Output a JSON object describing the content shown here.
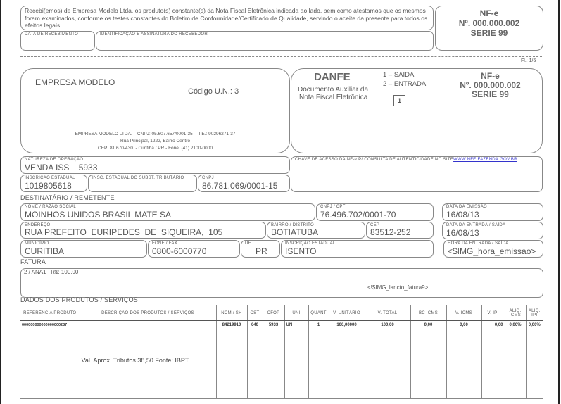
{
  "canhoto": {
    "text": "Recebi(emos) de Empresa Modelo Ltda. os produto(s) constante(s) da Nota Fiscal Eletrônica indicada ao lado, bem como atestamos que os mesmos foram examinados, conforme os testes constantes do Boletim de Conformidade/Certificado de Qualidade, servindo o aceite da presente para todos os efeitos legais.",
    "data_label": "DATA DE RECEBIMENTO",
    "ident_label": "IDENTIFICAÇÃO E ASSINATURA DO RECEBEDOR",
    "nfe": "NF-e",
    "numero": "Nº. 000.000.002",
    "serie": "SERIE 99"
  },
  "folha": "Fl.: 1/6",
  "emitente": {
    "nome": "EMPRESA MODELO",
    "codigo": "Código U.N.: 3",
    "linha1": "EMPRESA MODELO LTDA.    CNPJ: 05.607.657/0001-35     I.E.: 90296271-37",
    "linha2": "Rua Principal, 1222, Bairro Centro",
    "linha3": "CEP: 81.670-430  - Curitiba / PR - Fone  (41) 2100-0000"
  },
  "danfe": {
    "title": "DANFE",
    "sub1": "Documento Auxiliar da",
    "sub2": "Nota Fiscal Eletrônica",
    "saida": "1 – SAIDA",
    "entrada": "2 – ENTRADA",
    "tipo": "1",
    "nfe": "NF-e",
    "numero": "Nº. 000.000.002",
    "serie": "SERIE 99"
  },
  "chave": {
    "label": "CHAVE DE ACESSO DA NF-e P/ CONSULTA DE AUTENTICIDADE NO SITE",
    "link": "WWW.NFE.FAZENDA.GOV.BR"
  },
  "natureza": {
    "label": "NATUREZA DE OPERAÇÃO",
    "value": "VENDA ISS    5933"
  },
  "ie": {
    "label": "INSCRIÇÃO ESTADUAL",
    "value": "1019805618"
  },
  "ie_st": {
    "label": "INSC. ESTADUAL DO SUBST. TRIBUTÁRIO",
    "value": ""
  },
  "cnpj": {
    "label": "CNPJ",
    "value": "86.781.069/0001-15"
  },
  "dest": {
    "section": "DESTINATÁRIO / REMETENTE",
    "nome": {
      "label": "NOME / RAZÃO SOCIAL",
      "value": "MOINHOS UNIDOS BRASIL MATE SA"
    },
    "cnpj": {
      "label": "CNPJ / CPF",
      "value": "76.496.702/0001-70"
    },
    "emissao": {
      "label": "DATA DA EMISSÃO",
      "value": "16/08/13"
    },
    "endereco": {
      "label": "ENDEREÇO",
      "value": "RUA PREFEITO  EURIPEDES  DE  SIQUEIRA,  105"
    },
    "bairro": {
      "label": "BAIRRO / DISTRITO",
      "value": "BOTIATUBA"
    },
    "cep": {
      "label": "CEP",
      "value": "83512-252"
    },
    "entrada": {
      "label": "DATA DA ENTRADA / SAÍDA",
      "value": "16/08/13"
    },
    "municipio": {
      "label": "MUNICÍPIO",
      "value": "CURITIBA"
    },
    "fone": {
      "label": "FONE / FAX",
      "value": "0800-6000770"
    },
    "uf": {
      "label": "UF",
      "value": "PR"
    },
    "ie": {
      "label": "INSCRIÇÃO ESTADUAL",
      "value": "ISENTO"
    },
    "hora": {
      "label": "HORA DA ENTRADA / SAÍDA",
      "value": "<$IMG_hora_emissao>"
    }
  },
  "fatura": {
    "section": "FATURA",
    "linha": "2 / ANA1   R$: 100,00",
    "placeholder": "<!$IMG_lancto_fatura9>"
  },
  "produtos": {
    "section": "DADOS DOS PRODUTOS / SERVIÇOS",
    "headers": [
      "REFERÊNCIA PRODUTO",
      "DESCRIÇÃO DOS PRODUTOS / SERVIÇOS",
      "NCM / SH",
      "CST",
      "CFOP",
      "UNI",
      "QUANT",
      "V. UNITÁRIO",
      "V. TOTAL",
      "BC ICMS",
      "V. ICMS",
      "V. IPI",
      "ALIQ. ICMS",
      "ALIQ. IPI"
    ],
    "row": [
      "000000000000000000237",
      "Val. Aprox. Tributos  38,50  Fonte: IBPT",
      "84219910",
      "040",
      "5933",
      "UN",
      "1",
      "100,00000",
      "100,00",
      "0,00",
      "0,00",
      "0,00",
      "0,00%",
      "0,00%"
    ]
  }
}
